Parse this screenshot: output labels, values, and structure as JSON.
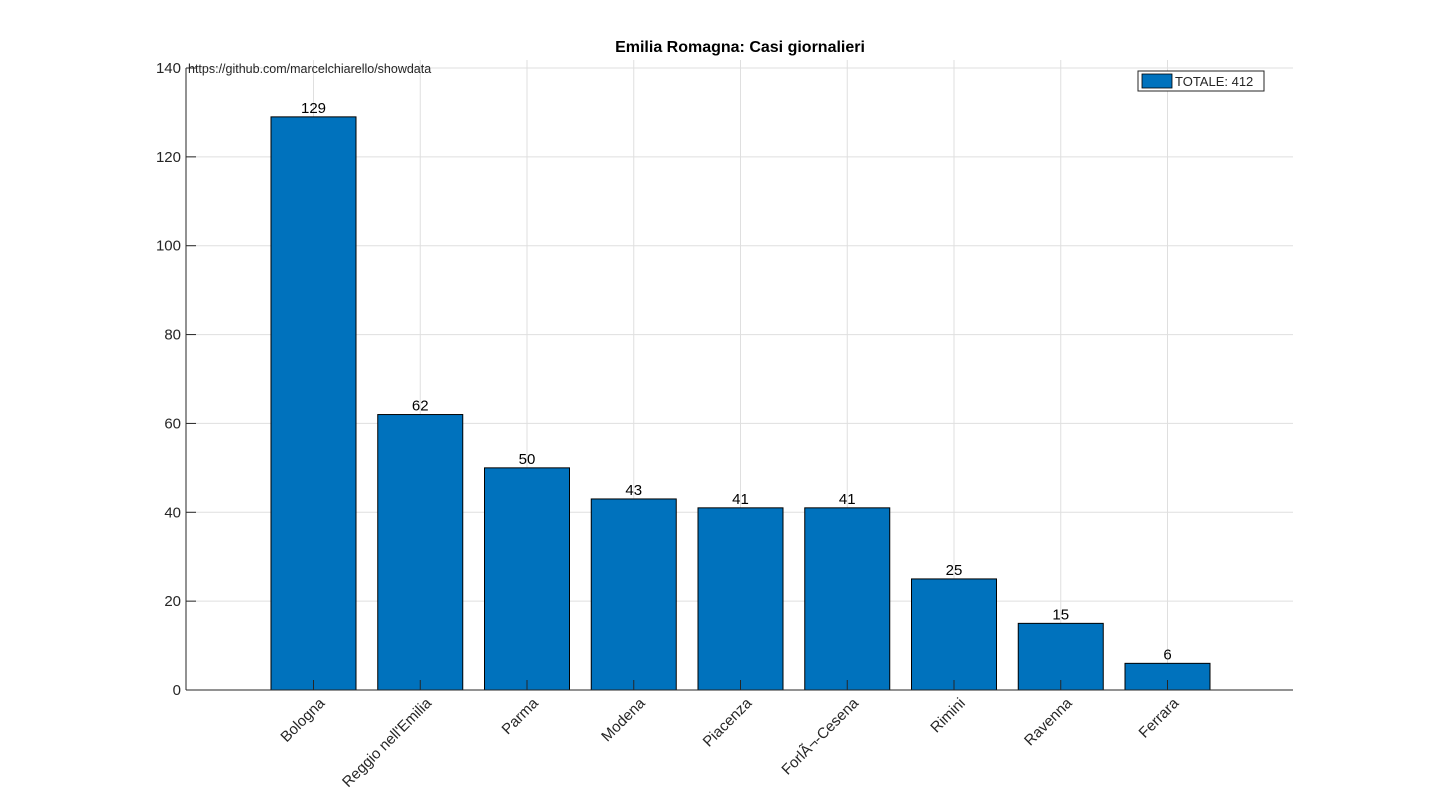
{
  "chart_data": {
    "type": "bar",
    "title": "Emilia Romagna: Casi giornalieri",
    "annotation": "https://github.com/marcelchiarello/showdata",
    "categories": [
      "Bologna",
      "Reggio nell'Emilia",
      "Parma",
      "Modena",
      "Piacenza",
      "ForlÃ¬-Cesena",
      "Rimini",
      "Ravenna",
      "Ferrara"
    ],
    "series": [
      {
        "name": "TOTALE: 412",
        "values": [
          129,
          62,
          50,
          43,
          41,
          41,
          25,
          15,
          6
        ],
        "color": "#0072bd"
      }
    ],
    "data_labels": [
      "129",
      "62",
      "50",
      "43",
      "41",
      "41",
      "25",
      "15",
      "6"
    ],
    "ylim": [
      0,
      140
    ],
    "yticks": [
      0,
      20,
      40,
      60,
      80,
      100,
      120,
      140
    ],
    "xlabel": "",
    "ylabel": "",
    "grid": true,
    "legend_position": "top-right"
  }
}
